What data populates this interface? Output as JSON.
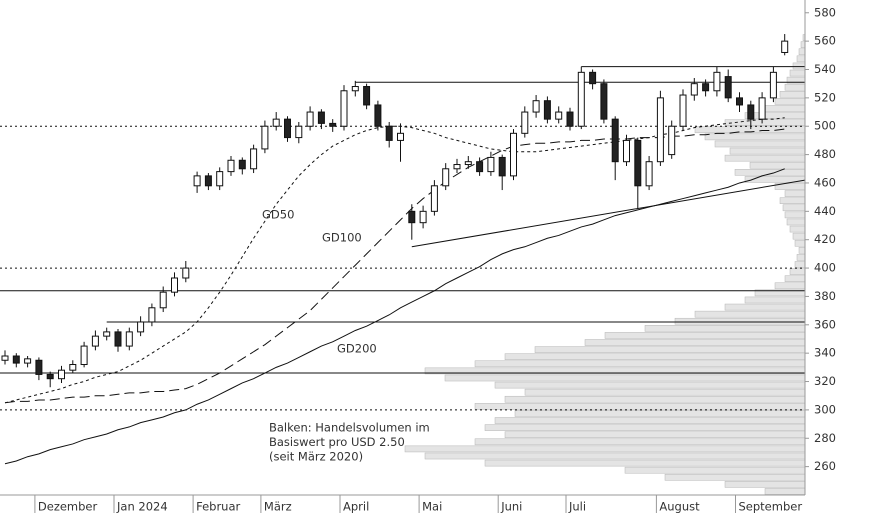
{
  "chart_data": {
    "type": "candlestick",
    "categories": [
      null,
      null,
      null,
      "Dezember",
      null,
      null,
      null,
      null,
      null,
      null,
      "Jan 2024",
      null,
      null,
      null,
      null,
      null,
      null,
      "Februar",
      null,
      null,
      null,
      null,
      null,
      "März",
      null,
      null,
      null,
      null,
      null,
      null,
      "April",
      null,
      null,
      null,
      null,
      null,
      null,
      "Mai",
      null,
      null,
      null,
      null,
      null,
      null,
      "Juni",
      null,
      null,
      null,
      null,
      null,
      "Juli",
      null,
      null,
      null,
      null,
      null,
      null,
      null,
      "August",
      null,
      null,
      null,
      null,
      null,
      null,
      "September",
      null,
      null,
      null,
      null
    ],
    "open": [
      335,
      338,
      333,
      335,
      325,
      322,
      328,
      332,
      345,
      352,
      355,
      345,
      355,
      362,
      372,
      383,
      393,
      458,
      465,
      458,
      468,
      476,
      470,
      484,
      500,
      505,
      492,
      500,
      510,
      502,
      500,
      525,
      528,
      515,
      500,
      490,
      440,
      432,
      440,
      458,
      470,
      473,
      475,
      468,
      478,
      465,
      495,
      510,
      518,
      505,
      510,
      500,
      538,
      530,
      505,
      475,
      490,
      458,
      475,
      480,
      500,
      522,
      530,
      525,
      535,
      520,
      515,
      505,
      520,
      552
    ],
    "high": [
      342,
      340,
      338,
      337,
      327,
      331,
      335,
      348,
      356,
      358,
      357,
      358,
      366,
      375,
      387,
      397,
      405,
      468,
      467,
      471,
      479,
      478,
      487,
      504,
      510,
      507,
      503,
      514,
      512,
      505,
      529,
      532,
      530,
      518,
      503,
      502,
      445,
      444,
      462,
      474,
      477,
      479,
      478,
      482,
      480,
      498,
      514,
      522,
      521,
      514,
      513,
      542,
      540,
      533,
      507,
      494,
      492,
      479,
      525,
      504,
      526,
      534,
      533,
      542,
      540,
      524,
      518,
      524,
      542,
      565
    ],
    "low": [
      332,
      330,
      330,
      321,
      316,
      319,
      326,
      330,
      342,
      349,
      341,
      342,
      352,
      359,
      369,
      380,
      390,
      453,
      455,
      455,
      465,
      466,
      467,
      481,
      497,
      489,
      488,
      497,
      498,
      496,
      497,
      521,
      512,
      497,
      485,
      475,
      420,
      428,
      437,
      455,
      467,
      470,
      465,
      465,
      455,
      462,
      492,
      506,
      502,
      502,
      497,
      498,
      526,
      502,
      462,
      472,
      442,
      455,
      472,
      477,
      497,
      518,
      521,
      521,
      517,
      510,
      498,
      502,
      517,
      550
    ],
    "close": [
      338,
      333,
      336,
      325,
      322,
      328,
      332,
      345,
      352,
      355,
      345,
      355,
      362,
      372,
      383,
      393,
      400,
      465,
      458,
      468,
      476,
      470,
      484,
      500,
      505,
      492,
      500,
      510,
      502,
      500,
      525,
      528,
      515,
      500,
      490,
      495,
      432,
      440,
      458,
      470,
      473,
      475,
      468,
      478,
      465,
      495,
      510,
      518,
      505,
      510,
      500,
      538,
      530,
      505,
      475,
      490,
      458,
      475,
      520,
      500,
      522,
      530,
      525,
      538,
      520,
      515,
      505,
      520,
      538,
      560
    ],
    "moving_averages": [
      {
        "name": "GD50",
        "dash": "3,3",
        "values": [
          305,
          307,
          309,
          311,
          313,
          315,
          318,
          320,
          323,
          325,
          327,
          331,
          335,
          340,
          345,
          350,
          355,
          362,
          372,
          383,
          395,
          408,
          421,
          433,
          445,
          455,
          465,
          473,
          480,
          486,
          490,
          494,
          497,
          499,
          500,
          500,
          499,
          497,
          495,
          492,
          490,
          488,
          486,
          484,
          483,
          482,
          482,
          482,
          483,
          484,
          485,
          486,
          487,
          488,
          489,
          490,
          491,
          492,
          494,
          495,
          497,
          499,
          500,
          501,
          502,
          503,
          504,
          505,
          505,
          506
        ]
      },
      {
        "name": "GD100",
        "dash": "10,5",
        "values": [
          305,
          306,
          306,
          307,
          307,
          308,
          309,
          309,
          310,
          310,
          311,
          312,
          312,
          313,
          313,
          314,
          315,
          318,
          322,
          326,
          331,
          336,
          341,
          346,
          352,
          358,
          364,
          370,
          378,
          386,
          394,
          402,
          410,
          418,
          426,
          434,
          442,
          449,
          455,
          461,
          466,
          471,
          475,
          479,
          483,
          486,
          487,
          488,
          488,
          489,
          489,
          490,
          490,
          491,
          491,
          491,
          492,
          492,
          492,
          493,
          493,
          494,
          494,
          495,
          495,
          496,
          496,
          497,
          497,
          498
        ]
      },
      {
        "name": "GD200",
        "dash": "none",
        "values": [
          262,
          264,
          267,
          269,
          272,
          274,
          276,
          279,
          281,
          283,
          286,
          288,
          291,
          293,
          295,
          298,
          300,
          304,
          307,
          311,
          315,
          319,
          322,
          326,
          330,
          333,
          337,
          341,
          345,
          348,
          352,
          356,
          359,
          363,
          367,
          372,
          376,
          380,
          384,
          389,
          393,
          397,
          401,
          406,
          410,
          413,
          415,
          418,
          421,
          423,
          426,
          429,
          431,
          434,
          437,
          439,
          441,
          443,
          445,
          447,
          449,
          451,
          453,
          455,
          457,
          460,
          462,
          465,
          467,
          470
        ]
      }
    ],
    "levels": [
      {
        "values": [
          500
        ],
        "style": "dotted"
      },
      {
        "values": [
          400
        ],
        "style": "dotted"
      },
      {
        "values": [
          300
        ],
        "style": "dotted"
      },
      {
        "values": [
          384
        ],
        "style": "solid"
      },
      {
        "values": [
          326
        ],
        "style": "solid"
      },
      {
        "values": [
          362
        ],
        "style": "solid",
        "from": 9
      },
      {
        "values": [
          531
        ],
        "style": "solid",
        "from": 31
      },
      {
        "values": [
          542
        ],
        "style": "solid",
        "from": 51
      },
      {
        "values": [
          415,
          462
        ],
        "style": "solid",
        "from": 36
      }
    ],
    "volume_profile": {
      "bins": [
        240,
        245,
        250,
        255,
        260,
        265,
        270,
        275,
        280,
        285,
        290,
        295,
        300,
        305,
        310,
        315,
        320,
        325,
        330,
        335,
        340,
        345,
        350,
        355,
        360,
        365,
        370,
        375,
        380,
        385,
        390,
        395,
        400,
        405,
        410,
        415,
        420,
        425,
        430,
        435,
        440,
        445,
        450,
        455,
        460,
        465,
        470,
        475,
        480,
        485,
        490,
        495,
        500,
        505,
        510,
        515,
        520,
        525,
        530,
        535,
        540,
        545,
        550,
        555,
        560,
        565
      ],
      "values": [
        40,
        80,
        140,
        180,
        320,
        380,
        400,
        330,
        300,
        320,
        310,
        290,
        330,
        300,
        280,
        310,
        360,
        380,
        330,
        300,
        270,
        220,
        200,
        160,
        130,
        110,
        80,
        60,
        50,
        30,
        20,
        15,
        10,
        8,
        6,
        10,
        12,
        15,
        18,
        20,
        22,
        25,
        20,
        30,
        60,
        70,
        55,
        80,
        75,
        90,
        100,
        110,
        80,
        60,
        40,
        30,
        25,
        20,
        18,
        15,
        12,
        8,
        6,
        4,
        2
      ],
      "xlim": [
        0,
        800
      ],
      "color": "#e4e4e4"
    },
    "annotation": [
      "Balken: Handelsvolumen im",
      "Basiswert pro USD 2.50",
      "(seit März 2020)"
    ],
    "ylim": [
      240,
      589
    ],
    "yticks": [
      260,
      280,
      300,
      320,
      340,
      360,
      380,
      400,
      420,
      440,
      460,
      480,
      500,
      520,
      540,
      560,
      580
    ]
  }
}
